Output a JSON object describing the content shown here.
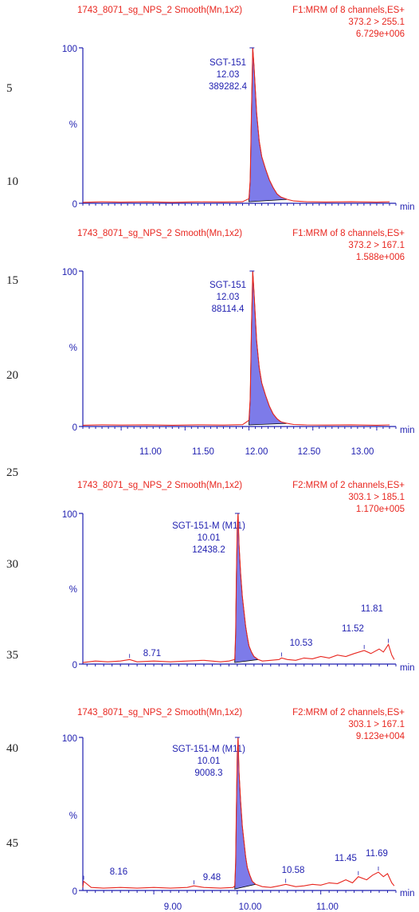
{
  "line_numbers": [
    "5",
    "10",
    "15",
    "20",
    "25",
    "30",
    "35",
    "40",
    "45"
  ],
  "colors": {
    "header": "#e8261f",
    "trace": "#e8261f",
    "axis": "#1f1fb0",
    "text": "#1f1fb0",
    "peak_fill": "#7d7be9",
    "background": "#ffffff"
  },
  "chart_data": [
    {
      "type": "line",
      "header_left": "1743_8071_sg_NPS_2 Smooth(Mn,1x2)",
      "header_right": "F1:MRM of 8 channels,ES+",
      "transition": "373.2 > 255.1",
      "intensity": "6.729e+006",
      "xlabel": "min",
      "ylabel": "%",
      "y_ticks": [
        "100",
        "0"
      ],
      "x_tick_labels": [],
      "xlim": [
        10.7,
        13.15
      ],
      "ylim": [
        0,
        100
      ],
      "peak": {
        "name": "SGT-151",
        "rt": "12.03",
        "area": "389282.4",
        "apex_x": 12.03
      },
      "minor_labels": [],
      "points": [
        [
          10.7,
          0.6
        ],
        [
          10.85,
          0.9
        ],
        [
          11.0,
          0.7
        ],
        [
          11.2,
          0.9
        ],
        [
          11.4,
          0.6
        ],
        [
          11.6,
          0.9
        ],
        [
          11.8,
          0.8
        ],
        [
          11.95,
          1.0
        ],
        [
          12.0,
          3
        ],
        [
          12.01,
          15
        ],
        [
          12.02,
          60
        ],
        [
          12.03,
          100
        ],
        [
          12.04,
          88
        ],
        [
          12.06,
          58
        ],
        [
          12.08,
          40
        ],
        [
          12.1,
          30
        ],
        [
          12.13,
          22
        ],
        [
          12.16,
          15
        ],
        [
          12.19,
          10
        ],
        [
          12.22,
          6
        ],
        [
          12.25,
          4
        ],
        [
          12.3,
          2.5
        ],
        [
          12.35,
          1.5
        ],
        [
          12.45,
          1.0
        ],
        [
          12.6,
          0.8
        ],
        [
          12.8,
          1.0
        ],
        [
          13.0,
          0.7
        ],
        [
          13.1,
          0.9
        ]
      ],
      "peak_shade": [
        [
          12.0,
          1
        ],
        [
          12.01,
          15
        ],
        [
          12.02,
          60
        ],
        [
          12.03,
          100
        ],
        [
          12.04,
          88
        ],
        [
          12.06,
          58
        ],
        [
          12.08,
          40
        ],
        [
          12.1,
          30
        ],
        [
          12.13,
          22
        ],
        [
          12.16,
          15
        ],
        [
          12.19,
          10
        ],
        [
          12.22,
          6
        ],
        [
          12.25,
          4
        ],
        [
          12.3,
          2.5
        ]
      ]
    },
    {
      "type": "line",
      "header_left": "1743_8071_sg_NPS_2 Smooth(Mn,1x2)",
      "header_right": "F1:MRM of 8 channels,ES+",
      "transition": "373.2 > 167.1",
      "intensity": "1.588e+006",
      "xlabel": "min",
      "ylabel": "%",
      "y_ticks": [
        "100",
        "0"
      ],
      "x_tick_labels": [
        "11.00",
        "11.50",
        "12.00",
        "12.50",
        "13.00"
      ],
      "x_tick_values": [
        11.0,
        11.5,
        12.0,
        12.5,
        13.0
      ],
      "xlim": [
        10.7,
        13.15
      ],
      "ylim": [
        0,
        100
      ],
      "peak": {
        "name": "SGT-151",
        "rt": "12.03",
        "area": "88114.4",
        "apex_x": 12.03
      },
      "minor_labels": [],
      "points": [
        [
          10.7,
          0.8
        ],
        [
          10.85,
          1.1
        ],
        [
          11.0,
          0.9
        ],
        [
          11.2,
          1.1
        ],
        [
          11.4,
          0.8
        ],
        [
          11.6,
          1.1
        ],
        [
          11.8,
          0.9
        ],
        [
          11.95,
          1.2
        ],
        [
          12.0,
          4
        ],
        [
          12.01,
          18
        ],
        [
          12.02,
          65
        ],
        [
          12.03,
          100
        ],
        [
          12.04,
          86
        ],
        [
          12.06,
          55
        ],
        [
          12.08,
          38
        ],
        [
          12.1,
          28
        ],
        [
          12.13,
          20
        ],
        [
          12.16,
          13
        ],
        [
          12.19,
          8
        ],
        [
          12.22,
          5
        ],
        [
          12.25,
          3
        ],
        [
          12.3,
          2
        ],
        [
          12.35,
          1.3
        ],
        [
          12.45,
          1.0
        ],
        [
          12.6,
          0.9
        ],
        [
          12.8,
          1.1
        ],
        [
          13.0,
          0.8
        ],
        [
          13.1,
          1.0
        ]
      ],
      "peak_shade": [
        [
          12.0,
          1
        ],
        [
          12.01,
          18
        ],
        [
          12.02,
          65
        ],
        [
          12.03,
          100
        ],
        [
          12.04,
          86
        ],
        [
          12.06,
          55
        ],
        [
          12.08,
          38
        ],
        [
          12.1,
          28
        ],
        [
          12.13,
          20
        ],
        [
          12.16,
          13
        ],
        [
          12.19,
          8
        ],
        [
          12.22,
          5
        ],
        [
          12.25,
          3
        ],
        [
          12.3,
          2
        ]
      ]
    },
    {
      "type": "line",
      "header_left": "1743_8071_sg_NPS_2 Smooth(Mn,1x2)",
      "header_right": "F2:MRM of 2 channels,ES+",
      "transition": "303.1 > 185.1",
      "intensity": "1.170e+005",
      "xlabel": "min",
      "ylabel": "%",
      "y_ticks": [
        "100",
        "0"
      ],
      "x_tick_labels": [],
      "xlim": [
        8.15,
        11.9
      ],
      "ylim": [
        0,
        100
      ],
      "peak": {
        "name": "SGT-151-M (M11)",
        "rt": "10.01",
        "area": "12438.2",
        "apex_x": 10.01
      },
      "minor_labels": [
        {
          "text": "8.71",
          "x": 8.71,
          "y": 3
        },
        {
          "text": "10.53",
          "x": 10.53,
          "y": 4
        },
        {
          "text": "11.52",
          "x": 11.52,
          "y": 9
        },
        {
          "text": "11.81",
          "x": 11.81,
          "y": 13
        }
      ],
      "points": [
        [
          8.15,
          1
        ],
        [
          8.3,
          2
        ],
        [
          8.45,
          1.5
        ],
        [
          8.6,
          2
        ],
        [
          8.71,
          3
        ],
        [
          8.8,
          1.5
        ],
        [
          9.0,
          2
        ],
        [
          9.2,
          1.5
        ],
        [
          9.4,
          2
        ],
        [
          9.6,
          2.5
        ],
        [
          9.8,
          1.5
        ],
        [
          9.9,
          2
        ],
        [
          9.97,
          3
        ],
        [
          9.98,
          20
        ],
        [
          9.99,
          60
        ],
        [
          10.0,
          92
        ],
        [
          10.01,
          100
        ],
        [
          10.02,
          80
        ],
        [
          10.04,
          60
        ],
        [
          10.06,
          45
        ],
        [
          10.08,
          35
        ],
        [
          10.1,
          25
        ],
        [
          10.12,
          18
        ],
        [
          10.14,
          12
        ],
        [
          10.17,
          8
        ],
        [
          10.2,
          5
        ],
        [
          10.25,
          3
        ],
        [
          10.3,
          2
        ],
        [
          10.4,
          2.5
        ],
        [
          10.5,
          3
        ],
        [
          10.53,
          4
        ],
        [
          10.6,
          3
        ],
        [
          10.7,
          2.5
        ],
        [
          10.8,
          4
        ],
        [
          10.9,
          3.5
        ],
        [
          11.0,
          5
        ],
        [
          11.1,
          4
        ],
        [
          11.2,
          6
        ],
        [
          11.3,
          5
        ],
        [
          11.4,
          7
        ],
        [
          11.52,
          9
        ],
        [
          11.6,
          7
        ],
        [
          11.7,
          10
        ],
        [
          11.75,
          8
        ],
        [
          11.81,
          13
        ],
        [
          11.85,
          6
        ],
        [
          11.88,
          3
        ]
      ],
      "peak_shade": [
        [
          9.97,
          1
        ],
        [
          9.98,
          20
        ],
        [
          9.99,
          60
        ],
        [
          10.0,
          92
        ],
        [
          10.01,
          100
        ],
        [
          10.02,
          80
        ],
        [
          10.04,
          60
        ],
        [
          10.06,
          45
        ],
        [
          10.08,
          35
        ],
        [
          10.1,
          25
        ],
        [
          10.12,
          18
        ],
        [
          10.14,
          12
        ],
        [
          10.17,
          8
        ],
        [
          10.2,
          5
        ],
        [
          10.25,
          3
        ]
      ]
    },
    {
      "type": "line",
      "header_left": "1743_8071_sg_NPS_2 Smooth(Mn,1x2)",
      "header_right": "F2:MRM of 2 channels,ES+",
      "transition": "303.1 > 167.1",
      "intensity": "9.123e+004",
      "xlabel": "min",
      "ylabel": "%",
      "y_ticks": [
        "100",
        "0"
      ],
      "x_tick_labels": [
        "9.00",
        "10.00",
        "11.00"
      ],
      "x_tick_values": [
        9.0,
        10.0,
        11.0
      ],
      "xlim": [
        8.15,
        11.9
      ],
      "ylim": [
        0,
        100
      ],
      "peak": {
        "name": "SGT-151-M (M11)",
        "rt": "10.01",
        "area": "9008.3",
        "apex_x": 10.01
      },
      "minor_labels": [
        {
          "text": "8.16",
          "x": 8.16,
          "y": 6
        },
        {
          "text": "9.48",
          "x": 9.48,
          "y": 3
        },
        {
          "text": "10.58",
          "x": 10.58,
          "y": 4
        },
        {
          "text": "11.45",
          "x": 11.45,
          "y": 9
        },
        {
          "text": "11.69",
          "x": 11.69,
          "y": 12
        }
      ],
      "points": [
        [
          8.15,
          2
        ],
        [
          8.16,
          6
        ],
        [
          8.25,
          2
        ],
        [
          8.4,
          1.5
        ],
        [
          8.6,
          2
        ],
        [
          8.8,
          1.5
        ],
        [
          9.0,
          2
        ],
        [
          9.2,
          1.5
        ],
        [
          9.4,
          2
        ],
        [
          9.48,
          3
        ],
        [
          9.6,
          2
        ],
        [
          9.8,
          1.5
        ],
        [
          9.95,
          2
        ],
        [
          9.97,
          3
        ],
        [
          9.98,
          18
        ],
        [
          9.99,
          55
        ],
        [
          10.0,
          90
        ],
        [
          10.01,
          100
        ],
        [
          10.02,
          78
        ],
        [
          10.04,
          58
        ],
        [
          10.06,
          42
        ],
        [
          10.08,
          32
        ],
        [
          10.1,
          22
        ],
        [
          10.12,
          15
        ],
        [
          10.15,
          10
        ],
        [
          10.18,
          6
        ],
        [
          10.22,
          4
        ],
        [
          10.3,
          2.5
        ],
        [
          10.4,
          2
        ],
        [
          10.5,
          3
        ],
        [
          10.58,
          4
        ],
        [
          10.7,
          2.5
        ],
        [
          10.8,
          3
        ],
        [
          10.9,
          4
        ],
        [
          11.0,
          3.5
        ],
        [
          11.1,
          5
        ],
        [
          11.2,
          4.5
        ],
        [
          11.3,
          7
        ],
        [
          11.38,
          5
        ],
        [
          11.45,
          9
        ],
        [
          11.55,
          7
        ],
        [
          11.62,
          10
        ],
        [
          11.69,
          12
        ],
        [
          11.75,
          9
        ],
        [
          11.8,
          11
        ],
        [
          11.85,
          5
        ],
        [
          11.88,
          3
        ]
      ],
      "peak_shade": [
        [
          9.97,
          1
        ],
        [
          9.98,
          18
        ],
        [
          9.99,
          55
        ],
        [
          10.0,
          90
        ],
        [
          10.01,
          100
        ],
        [
          10.02,
          78
        ],
        [
          10.04,
          58
        ],
        [
          10.06,
          42
        ],
        [
          10.08,
          32
        ],
        [
          10.1,
          22
        ],
        [
          10.12,
          15
        ],
        [
          10.15,
          10
        ],
        [
          10.18,
          6
        ],
        [
          10.22,
          4
        ]
      ]
    }
  ]
}
